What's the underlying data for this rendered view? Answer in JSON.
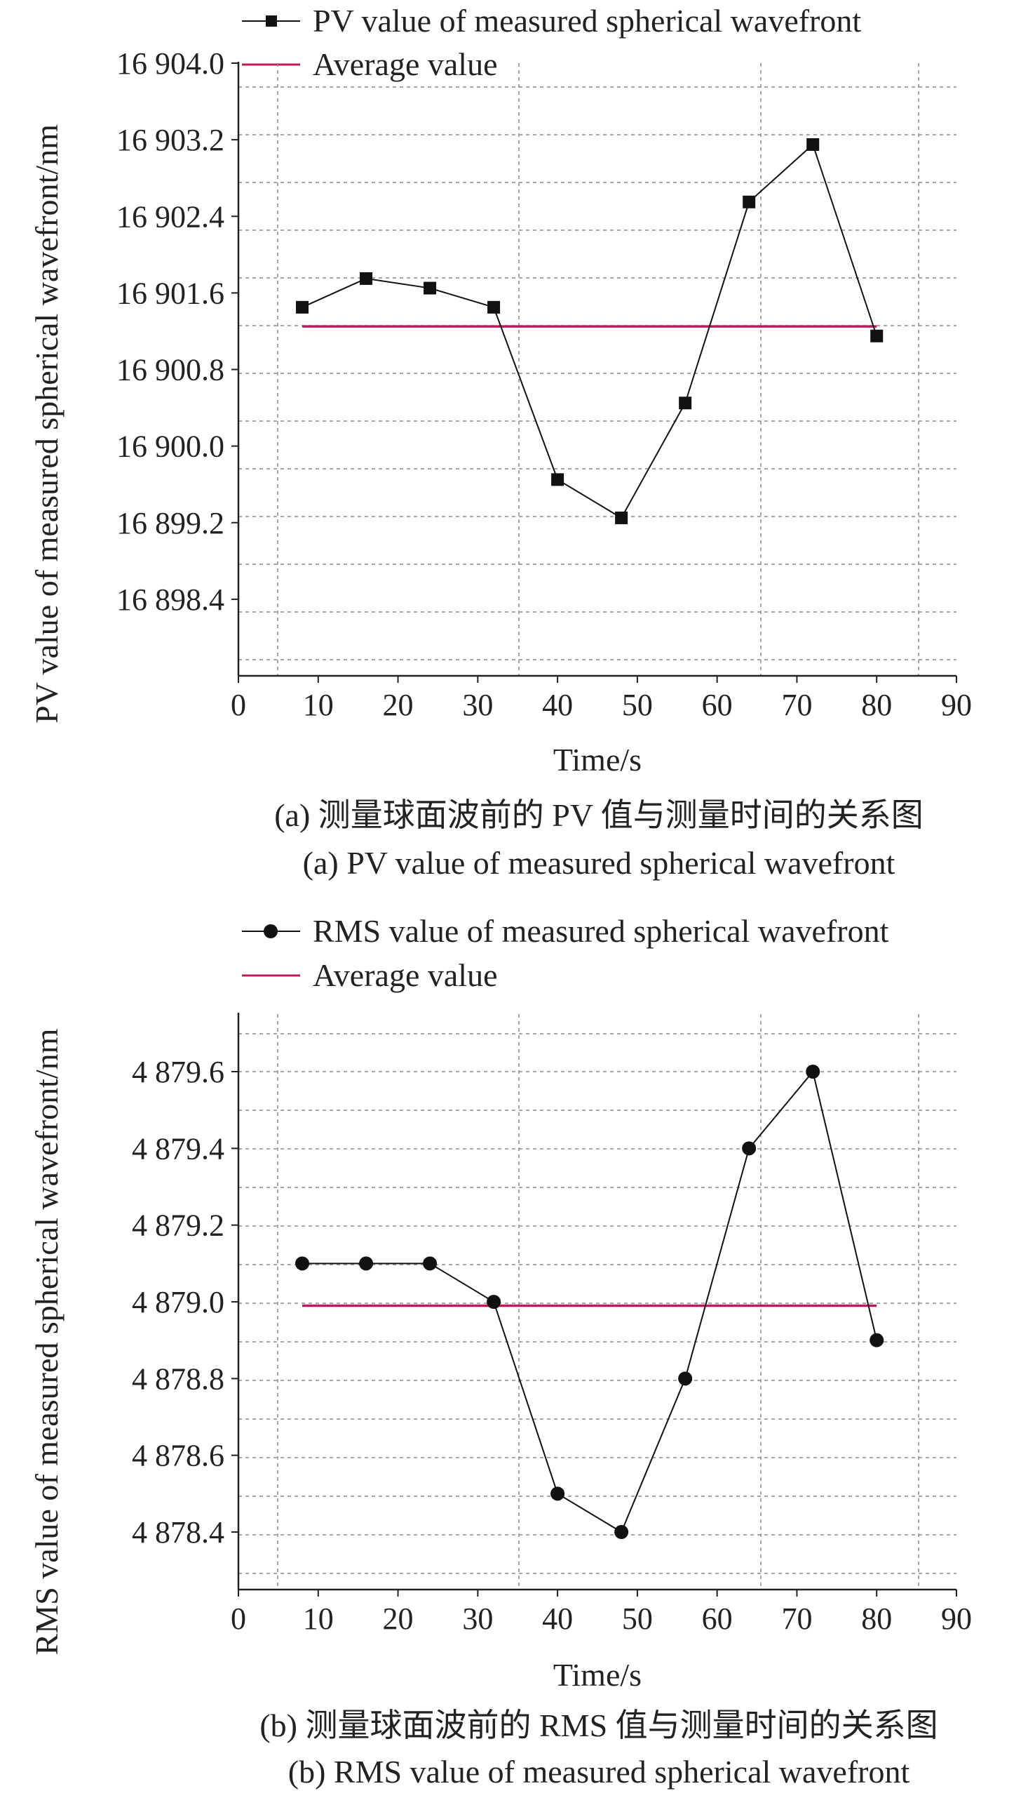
{
  "chart_data": [
    {
      "type": "line",
      "x": [
        8,
        16,
        24,
        32,
        40,
        48,
        56,
        64,
        72,
        80
      ],
      "series": [
        {
          "name": "PV value of measured spherical wavefront",
          "values": [
            16901.45,
            16901.75,
            16901.65,
            16901.45,
            16899.65,
            16899.25,
            16900.45,
            16902.55,
            16903.15,
            16901.15
          ],
          "color": "#111111",
          "marker": "square"
        },
        {
          "name": "Average value",
          "x": [
            8,
            80
          ],
          "values": [
            16901.25,
            16901.25
          ],
          "color": "#c2185b",
          "marker": "none"
        }
      ],
      "xlabel": "Time/s",
      "ylabel": "PV value of measured spherical wavefront/nm",
      "xlim": [
        0,
        90
      ],
      "ylim": [
        16897.6,
        16904.0
      ],
      "xticks": [
        "0",
        "10",
        "20",
        "30",
        "40",
        "50",
        "60",
        "70",
        "80",
        "90"
      ],
      "yticks": [
        "16 904.0",
        "16 903.2",
        "16 902.4",
        "16 901.6",
        "16 900.8",
        "16 900.0",
        "16 899.2",
        "16 898.4"
      ],
      "grid": true,
      "legend": "top",
      "caption_cn": "(a) 测量球面波前的 PV 值与测量时间的关系图",
      "caption_en": "(a) PV value of measured spherical wavefront"
    },
    {
      "type": "line",
      "x": [
        8,
        16,
        24,
        32,
        40,
        48,
        56,
        64,
        72,
        80
      ],
      "series": [
        {
          "name": "RMS value of measured spherical wavefront",
          "values": [
            4879.1,
            4879.1,
            4879.1,
            4879.0,
            4878.5,
            4878.4,
            4878.8,
            4879.4,
            4879.6,
            4878.9
          ],
          "color": "#111111",
          "marker": "circle"
        },
        {
          "name": "Average value",
          "x": [
            8,
            80
          ],
          "values": [
            4878.99,
            4878.99
          ],
          "color": "#c2185b",
          "marker": "none"
        }
      ],
      "xlabel": "Time/s",
      "ylabel": "RMS value of measured spherical wavefront/nm",
      "xlim": [
        0,
        90
      ],
      "ylim": [
        4878.25,
        4879.75
      ],
      "xticks": [
        "0",
        "10",
        "20",
        "30",
        "40",
        "50",
        "60",
        "70",
        "80",
        "90"
      ],
      "yticks": [
        "4 879.6",
        "4 879.4",
        "4 879.2",
        "4 879.0",
        "4 878.8",
        "4 878.6",
        "4 878.4"
      ],
      "grid": true,
      "legend": "top",
      "caption_cn": "(b) 测量球面波前的 RMS 值与测量时间的关系图",
      "caption_en": "(b)  RMS value of measured spherical wavefront"
    }
  ]
}
